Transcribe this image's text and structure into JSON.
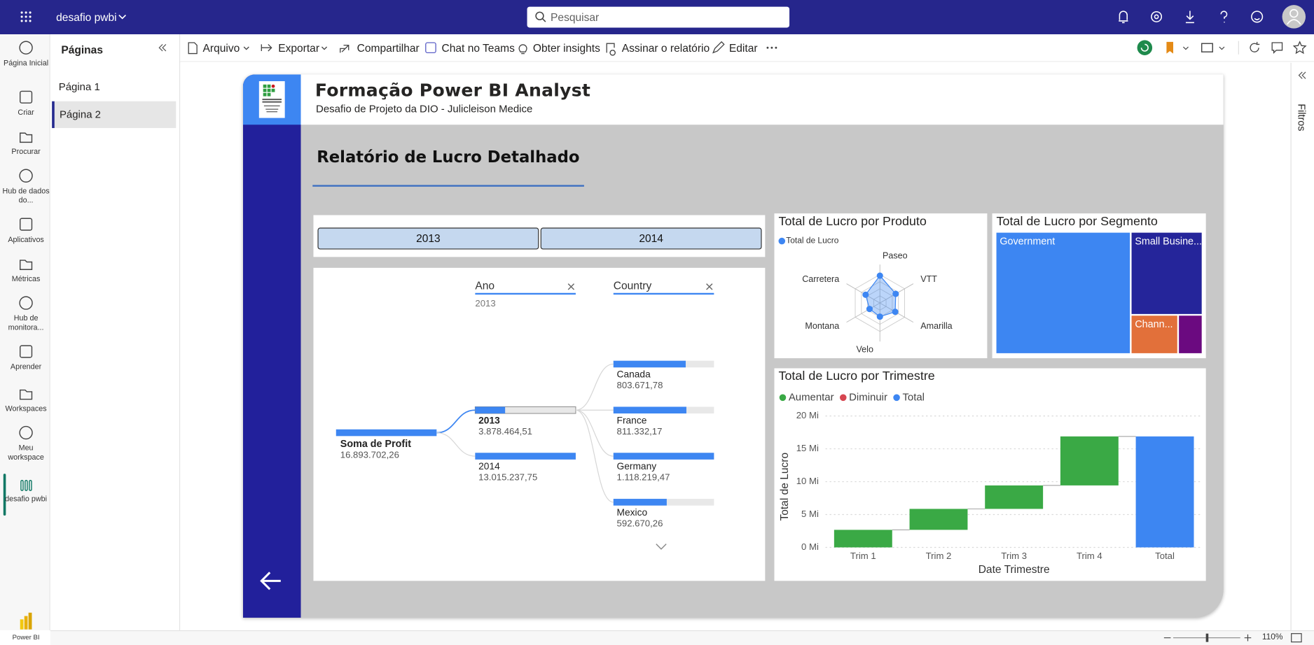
{
  "app": {
    "workspace": "desafio pwbi",
    "search": "Pesquisar",
    "brand": "Power BI",
    "zoom": "110%",
    "filters": "Filtros"
  },
  "nav": [
    "Página Inicial",
    "Criar",
    "Procurar",
    "Hub de dados do...",
    "Aplicativos",
    "Métricas",
    "Hub de monitora...",
    "Aprender",
    "Workspaces",
    "Meu workspace",
    "desafio pwbi"
  ],
  "pages_panel": {
    "title": "Páginas",
    "pages": [
      "Página 1",
      "Página 2"
    ],
    "selected": 1
  },
  "toolbar": [
    "Arquivo",
    "Exportar",
    "Compartilhar",
    "Chat no Teams",
    "Obter insights",
    "Assinar o relatório",
    "Editar"
  ],
  "report": {
    "title": "Formação Power BI Analyst",
    "subtitle": "Desafio de Projeto da DIO - Julicleison Medice",
    "heading": "Relatório de Lucro Detalhado",
    "slicer": [
      "2013",
      "2014"
    ]
  },
  "decomposition_tree": {
    "columns": [
      {
        "header": "Ano",
        "filter": "2013"
      },
      {
        "header": "Country"
      }
    ],
    "root": {
      "label": "Soma de Profit",
      "value": 16893702.26,
      "value_label": "16.893.702,26"
    },
    "expanded": 0,
    "nodes": [
      [
        {
          "label": "2013",
          "value": 3878464.51,
          "value_label": "3.878.464,51"
        },
        {
          "label": "2014",
          "value": 13015237.75,
          "value_label": "13.015.237,75"
        }
      ],
      [
        {
          "label": "Canada",
          "value": 803671.78,
          "value_label": "803.671,78"
        },
        {
          "label": "France",
          "value": 811332.17,
          "value_label": "811.332,17"
        },
        {
          "label": "Germany",
          "value": 1118219.47,
          "value_label": "1.118.219,47"
        },
        {
          "label": "Mexico",
          "value": 592670.26,
          "value_label": "592.670,26"
        }
      ]
    ]
  },
  "chart_data": [
    {
      "type": "radar",
      "title": "Total de Lucro por Produto",
      "categories": [
        "Paseo",
        "VTT",
        "Amarilla",
        "Velo",
        "Montana",
        "Carretera"
      ],
      "rlim": [
        0,
        5
      ],
      "series": [
        {
          "name": "Total de Lucro",
          "color": "#3d86f2",
          "values": [
            4.8,
            3.2,
            3.1,
            2.4,
            2.1,
            2.9
          ]
        }
      ]
    },
    {
      "type": "treemap",
      "title": "Total de Lucro por Segmento",
      "categories": [
        "Government",
        "Small Busine...",
        "Chann...",
        null
      ],
      "values": [
        11.03,
        3.98,
        1.24,
        0.64
      ],
      "colors": [
        "#3d86f2",
        "#25259a",
        "#e2703a",
        "#6b0a80"
      ]
    },
    {
      "type": "waterfall",
      "title": "Total de Lucro por Trimestre",
      "categories": [
        "Trim 1",
        "Trim 2",
        "Trim 3",
        "Trim 4",
        "Total"
      ],
      "values": [
        2.67,
        3.19,
        3.57,
        7.46,
        16.89
      ],
      "measure": [
        "relative",
        "relative",
        "relative",
        "relative",
        "total"
      ],
      "legend": [
        {
          "name": "Aumentar",
          "color": "#3aa945"
        },
        {
          "name": "Diminuir",
          "color": "#d64550"
        },
        {
          "name": "Total",
          "color": "#3d86f2"
        }
      ],
      "ylabel": "Total de Lucro",
      "xlabel": "Date Trimestre",
      "ylim": [
        0,
        20
      ],
      "yticks": [
        {
          "value": 0,
          "label": "0 Mi"
        },
        {
          "value": 5,
          "label": "5 Mi"
        },
        {
          "value": 10,
          "label": "10 Mi"
        },
        {
          "value": 15,
          "label": "15 Mi"
        },
        {
          "value": 20,
          "label": "20 Mi"
        }
      ],
      "grid": true
    }
  ]
}
